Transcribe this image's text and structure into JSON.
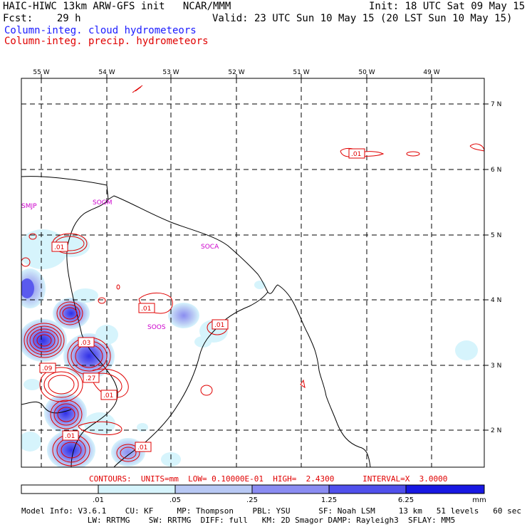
{
  "header": {
    "title": "HAIC-HIWC 13km ARW-GFS init   NCAR/MMM",
    "init": "Init: 18 UTC Sat 09 May 15",
    "fcst": "Fcst:    29 h",
    "valid": "Valid: 23 UTC Sun 10 May 15 (20 LST Sun 10 May 15)",
    "cloud_label": "Column-integ. cloud hydrometeors",
    "precip_label": "Column-integ. precip. hydrometeors"
  },
  "map": {
    "lon_labels": [
      "55 W",
      "54 W",
      "53 W",
      "52 W",
      "51 W",
      "50 W",
      "49 W"
    ],
    "lat_labels": [
      "7 N",
      "6 N",
      "5 N",
      "4 N",
      "3 N",
      "2 N"
    ],
    "stations": [
      "SMJP",
      "SOGM",
      "SOCA",
      "SOOS"
    ],
    "contour_labels": [
      ".01",
      ".01",
      ".01",
      ".01",
      ".03",
      ".09",
      ".27",
      ".01",
      ".01",
      ".01"
    ]
  },
  "contours_line": "CONTOURS:  UNITS=mm  LOW= 0.10000E-01  HIGH=  2.4300      INTERVAL=X  3.0000",
  "colorbar": {
    "ticks": [
      ".01",
      ".05",
      ".25",
      "1.25",
      "6.25",
      "mm"
    ],
    "colors": [
      "#ffffff",
      "#d6f4fc",
      "#b8c8f4",
      "#9a9cf2",
      "#6a6af0",
      "#3a3ae8",
      "#1010e0"
    ]
  },
  "model_info": {
    "line1": "Model Info: V3.6.1    CU: KF     MP: Thompson    PBL: YSU      SF: Noah LSM     13 km   51 levels   60 sec",
    "line2": "              LW: RRTMG    SW: RRTMG  DIFF: full   KM: 2D Smagor DAMP: Rayleigh3  SFLAY: MM5"
  },
  "colors": {
    "precip_contour": "#e00000",
    "station": "#cc00cc",
    "cloud_text": "#1a1aff"
  }
}
